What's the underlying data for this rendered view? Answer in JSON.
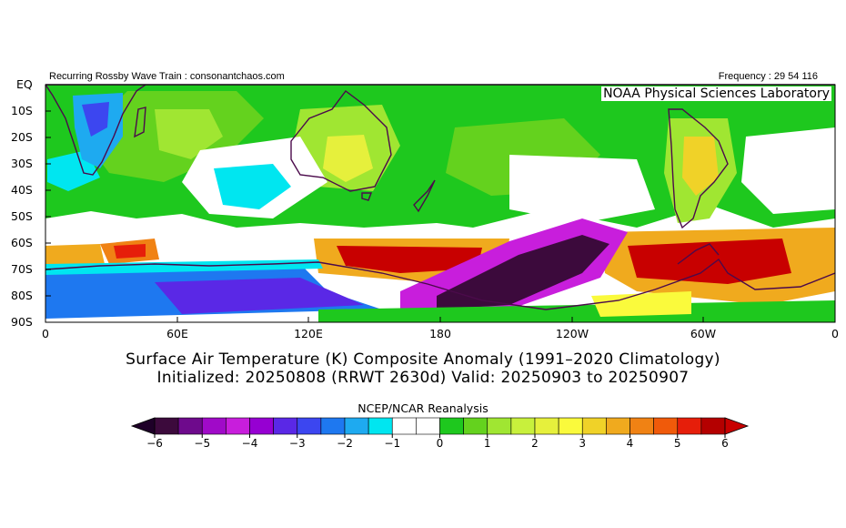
{
  "header": {
    "left_text": "Recurring Rossby Wave Train : consonantchaos.com",
    "right_text": "Frequency : 29 54 116",
    "lab_text": "NOAA Physical Sciences Laboratory"
  },
  "title": {
    "line1": "Surface Air Temperature (K) Composite Anomaly (1991–2020 Climatology)",
    "line2": "Initialized: 20250808 (RRWT 2630d) Valid: 20250903 to 20250907"
  },
  "colorbar": {
    "label": "NCEP/NCAR Reanalysis",
    "ticks": [
      "−6",
      "−5",
      "−4",
      "−3",
      "−2",
      "−1",
      "0",
      "1",
      "2",
      "3",
      "4",
      "5",
      "6"
    ],
    "colors": [
      "#3c0a3c",
      "#6e0a8c",
      "#a00ac8",
      "#c81edc",
      "#9600d2",
      "#5a28e6",
      "#3c46f0",
      "#1e78f0",
      "#1eaaf0",
      "#00e6f0",
      "#ffffff",
      "#ffffff",
      "#1ec81e",
      "#64d21e",
      "#a0e632",
      "#c8f03c",
      "#e6f03c",
      "#fafa3c",
      "#f0d228",
      "#f0aa1e",
      "#f08214",
      "#f05a0a",
      "#e61e0a",
      "#b40000"
    ],
    "lower_arrow_color": "#1e0028",
    "upper_arrow_color": "#c80000"
  },
  "chart_data": {
    "type": "heatmap",
    "variable": "Surface Air Temperature (K) Composite Anomaly",
    "units": "K",
    "x_ticks": [
      "0",
      "60E",
      "120E",
      "180",
      "120W",
      "60W",
      "0"
    ],
    "x_tick_lon": [
      0,
      60,
      120,
      180,
      240,
      300,
      360
    ],
    "y_ticks": [
      "EQ",
      "10S",
      "20S",
      "30S",
      "40S",
      "50S",
      "60S",
      "70S",
      "80S",
      "90S"
    ],
    "y_tick_lat": [
      0,
      -10,
      -20,
      -30,
      -40,
      -50,
      -60,
      -70,
      -80,
      -90
    ],
    "xlim": [
      0,
      360
    ],
    "ylim": [
      -90,
      0
    ],
    "levels": [
      -6,
      -5,
      -4,
      -3,
      -2,
      -1,
      0,
      1,
      2,
      3,
      4,
      5,
      6
    ],
    "anomaly_features": [
      {
        "region": "Ross Sea / South Pacific sector",
        "lon": [
          195,
          250
        ],
        "lat": [
          -85,
          -58
        ],
        "value": -6
      },
      {
        "region": "East Antarctica interior",
        "lon": [
          80,
          140
        ],
        "lat": [
          -86,
          -74
        ],
        "value": -3
      },
      {
        "region": "Southern Ocean south of Indian Ocean",
        "lon": [
          20,
          100
        ],
        "lat": [
          -80,
          -70
        ],
        "value": -2
      },
      {
        "region": "Southern Ocean south of Australia / NZ",
        "lon": [
          130,
          205
        ],
        "lat": [
          -74,
          -60
        ],
        "value": 5
      },
      {
        "region": "Weddell Sea / Antarctic Peninsula",
        "lon": [
          280,
          355
        ],
        "lat": [
          -78,
          -60
        ],
        "value": 5
      },
      {
        "region": "Southern Ocean south of Africa",
        "lon": [
          20,
          60
        ],
        "lat": [
          -70,
          -62
        ],
        "value": 4
      },
      {
        "region": "Southern Africa",
        "lon": [
          12,
          40
        ],
        "lat": [
          -35,
          -5
        ],
        "value": -2
      },
      {
        "region": "Western Australia",
        "lon": [
          115,
          140
        ],
        "lat": [
          -35,
          -18
        ],
        "value": 2
      },
      {
        "region": "South America (Argentina)",
        "lon": [
          290,
          310
        ],
        "lat": [
          -45,
          -15
        ],
        "value": 2
      },
      {
        "region": "Indian Ocean subtropics",
        "lon": [
          75,
          110
        ],
        "lat": [
          -50,
          -30
        ],
        "value": -1
      }
    ]
  }
}
